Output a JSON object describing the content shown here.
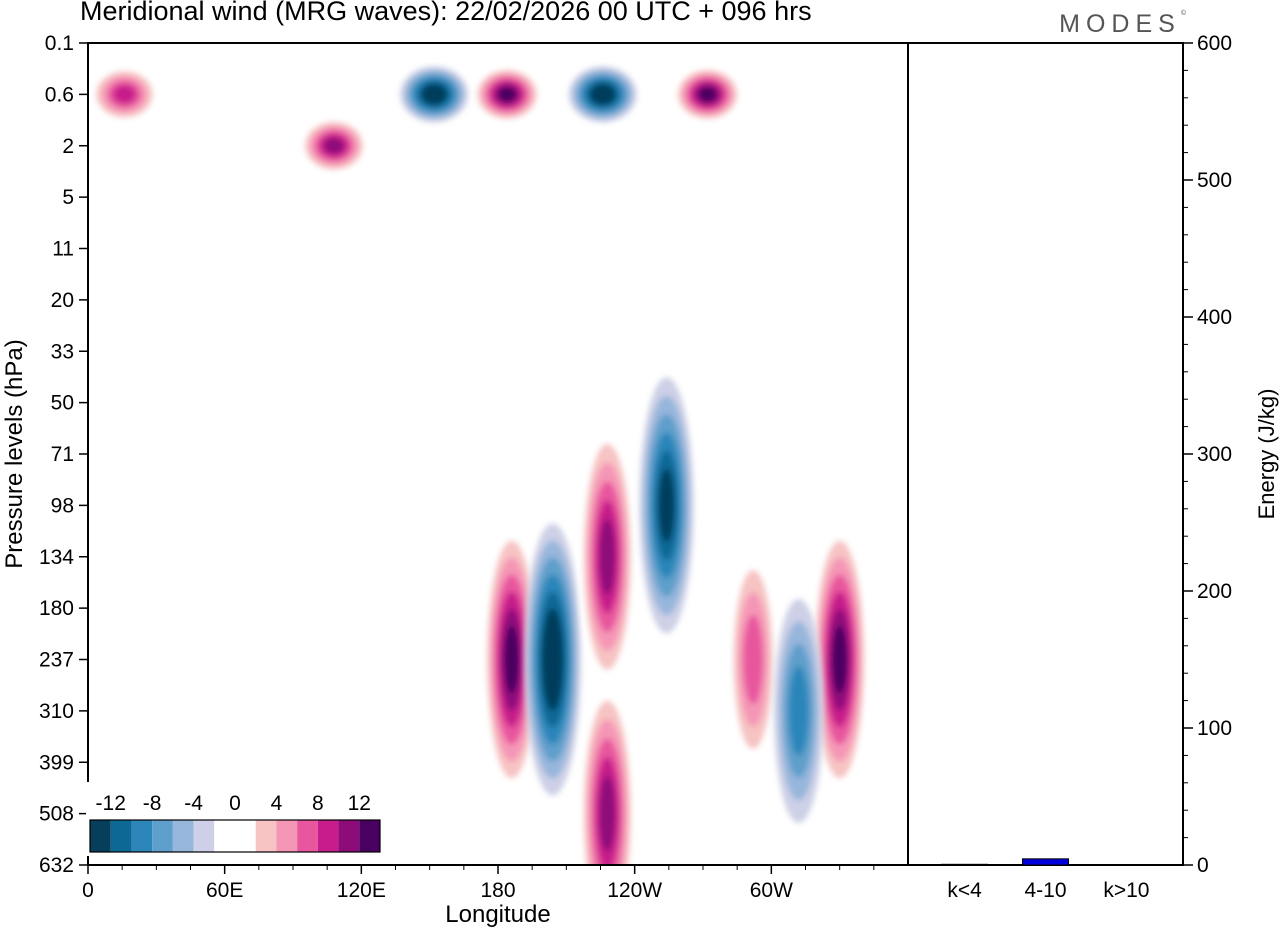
{
  "title": "Meridional wind (MRG waves):  22/02/2026  00 UTC  + 096 hrs",
  "logo": "MODES",
  "chart_data": [
    {
      "type": "heatmap",
      "title": "Meridional wind (MRG waves):  22/02/2026  00 UTC  + 096 hrs",
      "xlabel": "Longitude",
      "ylabel": "Pressure levels (hPa)",
      "x_ticks": [
        "0",
        "60E",
        "120E",
        "180",
        "120W",
        "60W"
      ],
      "x_tick_lon": [
        0,
        60,
        120,
        180,
        240,
        300
      ],
      "xlim": [
        0,
        360
      ],
      "y_ticks": [
        "0.1",
        "0.6",
        "2",
        "5",
        "11",
        "20",
        "33",
        "50",
        "71",
        "98",
        "134",
        "180",
        "237",
        "310",
        "399",
        "508",
        "632"
      ],
      "colorbar": {
        "labels": [
          "-12",
          "-8",
          "-4",
          "0",
          "4",
          "8",
          "12"
        ],
        "levels": [
          -14,
          -12,
          -10,
          -8,
          -6,
          -4,
          -2,
          2,
          4,
          6,
          8,
          10,
          12,
          14
        ],
        "colors": [
          "#063e5c",
          "#0d6896",
          "#2c86ba",
          "#5f9fcb",
          "#97b6db",
          "#cdd0e6",
          "#ffffff",
          "#ffffff",
          "#f7c3c3",
          "#f596b6",
          "#e8579e",
          "#c71c8b",
          "#8e0b7a",
          "#4a0061"
        ]
      },
      "features": [
        {
          "lon": 186,
          "level": "237",
          "value": 14
        },
        {
          "lon": 204,
          "level": "237",
          "value": -14
        },
        {
          "lon": 228,
          "level": "134",
          "value": 13
        },
        {
          "lon": 254,
          "level": "98",
          "value": -12
        },
        {
          "lon": 228,
          "level": "508",
          "value": 13
        },
        {
          "lon": 330,
          "level": "237",
          "value": 14
        },
        {
          "lon": 292,
          "level": "237",
          "value": 8
        },
        {
          "lon": 312,
          "level": "310",
          "value": -8
        },
        {
          "lon": 152,
          "level": "0.6",
          "value": -14
        },
        {
          "lon": 184,
          "level": "0.6",
          "value": 14
        },
        {
          "lon": 226,
          "level": "0.6",
          "value": -14
        },
        {
          "lon": 272,
          "level": "0.6",
          "value": 14
        },
        {
          "lon": 16,
          "level": "0.6",
          "value": 10
        },
        {
          "lon": 108,
          "level": "2",
          "value": 12
        }
      ]
    },
    {
      "type": "bar",
      "ylabel": "Energy (J/kg)",
      "categories": [
        "k<4",
        "4-10",
        "k>10"
      ],
      "values": [
        0.5,
        4.5,
        0.3
      ],
      "ylim": [
        0,
        600
      ],
      "y_ticks": [
        "0",
        "100",
        "200",
        "300",
        "400",
        "500",
        "600"
      ],
      "bar_color": "#0000dd"
    }
  ]
}
